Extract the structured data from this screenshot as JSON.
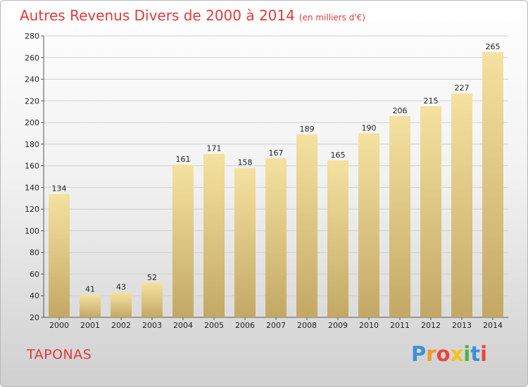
{
  "title": "Autres Revenus Divers de 2000 à 2014",
  "unit": "(en milliers d'€)",
  "place": "TAPONAS",
  "logo": "Proxiti",
  "colors": {
    "title": "#e23a3a",
    "bar_top": "#f5e2a0",
    "bar_bottom": "#c3a865",
    "grid": "#cfcfcf"
  },
  "chart_data": {
    "type": "bar",
    "categories": [
      "2000",
      "2001",
      "2002",
      "2003",
      "2004",
      "2005",
      "2006",
      "2007",
      "2008",
      "2009",
      "2010",
      "2011",
      "2012",
      "2013",
      "2014"
    ],
    "values": [
      134,
      41,
      43,
      52,
      161,
      171,
      158,
      167,
      189,
      165,
      190,
      206,
      215,
      227,
      265
    ],
    "ylim": [
      20,
      280
    ],
    "yticks": [
      20,
      40,
      60,
      80,
      100,
      120,
      140,
      160,
      180,
      200,
      220,
      240,
      260,
      280
    ],
    "grid": true,
    "title": "Autres Revenus Divers de 2000 à 2014",
    "xlabel": "",
    "ylabel": ""
  }
}
